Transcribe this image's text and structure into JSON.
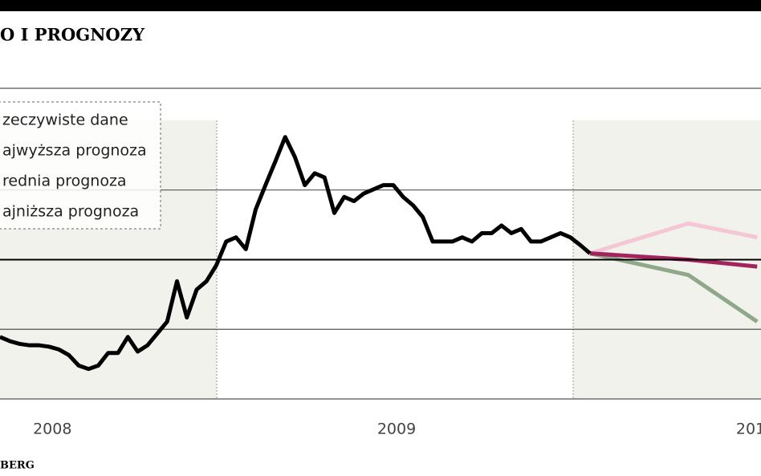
{
  "chart_data": {
    "type": "line",
    "title": "O I PROGNOZY",
    "source": "BERG",
    "categories": [
      null,
      null,
      null,
      null,
      null,
      "2008",
      null,
      null,
      null,
      null,
      null,
      null,
      null,
      null,
      null,
      null,
      null,
      null,
      null,
      null,
      null,
      null,
      null,
      null,
      null,
      null,
      null,
      null,
      null,
      null,
      null,
      null,
      null,
      null,
      null,
      null,
      null,
      null,
      null,
      null,
      "2009",
      null,
      null,
      null,
      null,
      null,
      null,
      null,
      null,
      null,
      null,
      null,
      null,
      null,
      null,
      null,
      null,
      null,
      null,
      null,
      null,
      null,
      null,
      null,
      null,
      null,
      null,
      null,
      null,
      null,
      null,
      null,
      null,
      null,
      null,
      null,
      "201",
      null
    ],
    "series": [
      {
        "name": "zeczywiste dane",
        "color": "#000000",
        "values": [
          0.89,
          0.83,
          0.79,
          0.77,
          0.77,
          0.75,
          0.71,
          0.63,
          0.48,
          0.43,
          0.48,
          0.66,
          0.66,
          0.89,
          0.68,
          0.77,
          0.94,
          1.11,
          1.69,
          1.17,
          1.57,
          1.69,
          1.92,
          2.26,
          2.32,
          2.15,
          2.72,
          3.07,
          3.41,
          3.76,
          3.47,
          3.07,
          3.24,
          3.18,
          2.67,
          2.9,
          2.84,
          2.95,
          3.01,
          3.07,
          3.07,
          2.9,
          2.78,
          2.61,
          2.26,
          2.26,
          2.26,
          2.32,
          2.26,
          2.38,
          2.38,
          2.49,
          2.38,
          2.44,
          2.26,
          2.26,
          2.32,
          2.38,
          2.32,
          2.21,
          2.09,
          null,
          null,
          null,
          null,
          null,
          null,
          null,
          null,
          null,
          null,
          null,
          null,
          null,
          null,
          null,
          null,
          null
        ]
      },
      {
        "name": "ajwyższa prognoza",
        "color": "#f5c7d6",
        "values": [
          null,
          null,
          null,
          null,
          null,
          null,
          null,
          null,
          null,
          null,
          null,
          null,
          null,
          null,
          null,
          null,
          null,
          null,
          null,
          null,
          null,
          null,
          null,
          null,
          null,
          null,
          null,
          null,
          null,
          null,
          null,
          null,
          null,
          null,
          null,
          null,
          null,
          null,
          null,
          null,
          null,
          null,
          null,
          null,
          null,
          null,
          null,
          null,
          null,
          null,
          null,
          null,
          null,
          null,
          null,
          null,
          null,
          null,
          null,
          null,
          2.09,
          null,
          null,
          null,
          null,
          null,
          null,
          null,
          null,
          null,
          2.52,
          null,
          null,
          null,
          null,
          null,
          null,
          2.32
        ]
      },
      {
        "name": "rednia prognoza",
        "color": "#a3245c",
        "values": [
          null,
          null,
          null,
          null,
          null,
          null,
          null,
          null,
          null,
          null,
          null,
          null,
          null,
          null,
          null,
          null,
          null,
          null,
          null,
          null,
          null,
          null,
          null,
          null,
          null,
          null,
          null,
          null,
          null,
          null,
          null,
          null,
          null,
          null,
          null,
          null,
          null,
          null,
          null,
          null,
          null,
          null,
          null,
          null,
          null,
          null,
          null,
          null,
          null,
          null,
          null,
          null,
          null,
          null,
          null,
          null,
          null,
          null,
          null,
          null,
          2.09,
          null,
          null,
          null,
          null,
          null,
          null,
          null,
          null,
          null,
          2.0,
          null,
          null,
          null,
          null,
          null,
          null,
          1.9
        ]
      },
      {
        "name": "ajniższa prognoza",
        "color": "#8fa88a",
        "values": [
          null,
          null,
          null,
          null,
          null,
          null,
          null,
          null,
          null,
          null,
          null,
          null,
          null,
          null,
          null,
          null,
          null,
          null,
          null,
          null,
          null,
          null,
          null,
          null,
          null,
          null,
          null,
          null,
          null,
          null,
          null,
          null,
          null,
          null,
          null,
          null,
          null,
          null,
          null,
          null,
          null,
          null,
          null,
          null,
          null,
          null,
          null,
          null,
          null,
          null,
          null,
          null,
          null,
          null,
          null,
          null,
          null,
          null,
          null,
          null,
          2.09,
          null,
          null,
          null,
          null,
          null,
          null,
          null,
          null,
          null,
          1.78,
          null,
          null,
          null,
          null,
          null,
          null,
          1.11
        ]
      }
    ],
    "ylim": [
      0,
      4.46
    ],
    "yticks": [
      0,
      1,
      2,
      3
    ],
    "reference_line": 2,
    "grid": true
  }
}
